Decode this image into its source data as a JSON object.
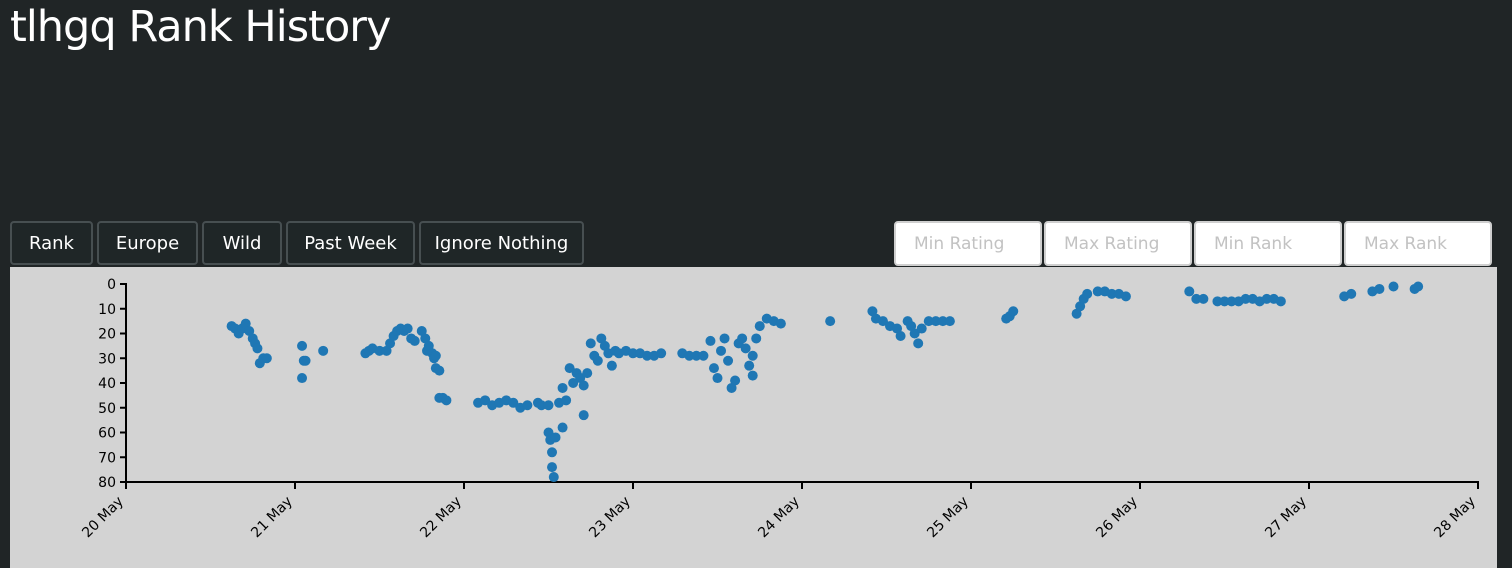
{
  "page": {
    "title": "tlhgq Rank History"
  },
  "buttons": {
    "rank": "Rank",
    "region": "Europe",
    "mode": "Wild",
    "period": "Past Week",
    "ignore": "Ignore Nothing"
  },
  "filters": {
    "min_rating_placeholder": "Min Rating",
    "max_rating_placeholder": "Max Rating",
    "min_rank_placeholder": "Min Rank",
    "max_rank_placeholder": "Max Rank"
  },
  "colors": {
    "point": "#1f77b4",
    "plot_bg": "#d3d3d3",
    "page_bg": "#202526"
  },
  "chart_data": {
    "type": "scatter",
    "title": "",
    "xlabel": "",
    "ylabel": "",
    "x_ticks": [
      "2024-05-20",
      "2024-05-21",
      "2024-05-22",
      "2024-05-23",
      "2024-05-24",
      "2024-05-25",
      "2024-05-26",
      "2024-05-27",
      "2024-05-28"
    ],
    "x_tick_labels": [
      "20 May",
      "21 May",
      "22 May",
      "23 May",
      "24 May",
      "25 May",
      "26 May",
      "27 May",
      "28 May"
    ],
    "y_ticks": [
      0,
      10,
      20,
      30,
      40,
      50,
      60,
      70,
      80
    ],
    "ylim": [
      80,
      0
    ],
    "y_reversed": true,
    "grid": false,
    "points": [
      {
        "t": "2024-05-20T15:00",
        "y": 17
      },
      {
        "t": "2024-05-20T15:30",
        "y": 18
      },
      {
        "t": "2024-05-20T16:00",
        "y": 20
      },
      {
        "t": "2024-05-20T16:30",
        "y": 18
      },
      {
        "t": "2024-05-20T17:00",
        "y": 16
      },
      {
        "t": "2024-05-20T17:30",
        "y": 19
      },
      {
        "t": "2024-05-20T18:00",
        "y": 22
      },
      {
        "t": "2024-05-20T18:20",
        "y": 24
      },
      {
        "t": "2024-05-20T18:40",
        "y": 26
      },
      {
        "t": "2024-05-20T19:00",
        "y": 32
      },
      {
        "t": "2024-05-20T19:30",
        "y": 30
      },
      {
        "t": "2024-05-20T20:00",
        "y": 30
      },
      {
        "t": "2024-05-21T01:00",
        "y": 25
      },
      {
        "t": "2024-05-21T01:00",
        "y": 38
      },
      {
        "t": "2024-05-21T01:15",
        "y": 31
      },
      {
        "t": "2024-05-21T01:30",
        "y": 31
      },
      {
        "t": "2024-05-21T04:00",
        "y": 27
      },
      {
        "t": "2024-05-21T10:00",
        "y": 28
      },
      {
        "t": "2024-05-21T10:30",
        "y": 27
      },
      {
        "t": "2024-05-21T11:00",
        "y": 26
      },
      {
        "t": "2024-05-21T12:00",
        "y": 27
      },
      {
        "t": "2024-05-21T13:00",
        "y": 27
      },
      {
        "t": "2024-05-21T13:30",
        "y": 24
      },
      {
        "t": "2024-05-21T14:00",
        "y": 21
      },
      {
        "t": "2024-05-21T14:30",
        "y": 19
      },
      {
        "t": "2024-05-21T15:00",
        "y": 18
      },
      {
        "t": "2024-05-21T15:30",
        "y": 19
      },
      {
        "t": "2024-05-21T16:00",
        "y": 18
      },
      {
        "t": "2024-05-21T16:30",
        "y": 22
      },
      {
        "t": "2024-05-21T17:00",
        "y": 23
      },
      {
        "t": "2024-05-21T18:00",
        "y": 19
      },
      {
        "t": "2024-05-21T18:30",
        "y": 22
      },
      {
        "t": "2024-05-21T18:45",
        "y": 27
      },
      {
        "t": "2024-05-21T19:00",
        "y": 25
      },
      {
        "t": "2024-05-21T19:30",
        "y": 28
      },
      {
        "t": "2024-05-21T19:45",
        "y": 30
      },
      {
        "t": "2024-05-21T20:00",
        "y": 29
      },
      {
        "t": "2024-05-21T20:00",
        "y": 34
      },
      {
        "t": "2024-05-21T20:30",
        "y": 35
      },
      {
        "t": "2024-05-21T20:30",
        "y": 46
      },
      {
        "t": "2024-05-21T21:00",
        "y": 46
      },
      {
        "t": "2024-05-21T21:30",
        "y": 47
      },
      {
        "t": "2024-05-22T02:00",
        "y": 48
      },
      {
        "t": "2024-05-22T03:00",
        "y": 47
      },
      {
        "t": "2024-05-22T04:00",
        "y": 49
      },
      {
        "t": "2024-05-22T05:00",
        "y": 48
      },
      {
        "t": "2024-05-22T06:00",
        "y": 47
      },
      {
        "t": "2024-05-22T07:00",
        "y": 48
      },
      {
        "t": "2024-05-22T08:00",
        "y": 50
      },
      {
        "t": "2024-05-22T09:00",
        "y": 49
      },
      {
        "t": "2024-05-22T10:30",
        "y": 48
      },
      {
        "t": "2024-05-22T11:00",
        "y": 49
      },
      {
        "t": "2024-05-22T12:00",
        "y": 49
      },
      {
        "t": "2024-05-22T12:00",
        "y": 60
      },
      {
        "t": "2024-05-22T12:15",
        "y": 63
      },
      {
        "t": "2024-05-22T12:30",
        "y": 68
      },
      {
        "t": "2024-05-22T12:30",
        "y": 74
      },
      {
        "t": "2024-05-22T12:45",
        "y": 78
      },
      {
        "t": "2024-05-22T13:00",
        "y": 62
      },
      {
        "t": "2024-05-22T13:30",
        "y": 48
      },
      {
        "t": "2024-05-22T14:00",
        "y": 42
      },
      {
        "t": "2024-05-22T14:00",
        "y": 58
      },
      {
        "t": "2024-05-22T14:30",
        "y": 47
      },
      {
        "t": "2024-05-22T15:00",
        "y": 34
      },
      {
        "t": "2024-05-22T15:30",
        "y": 40
      },
      {
        "t": "2024-05-22T16:00",
        "y": 36
      },
      {
        "t": "2024-05-22T16:30",
        "y": 38
      },
      {
        "t": "2024-05-22T17:00",
        "y": 41
      },
      {
        "t": "2024-05-22T17:00",
        "y": 53
      },
      {
        "t": "2024-05-22T17:30",
        "y": 36
      },
      {
        "t": "2024-05-22T18:00",
        "y": 24
      },
      {
        "t": "2024-05-22T18:30",
        "y": 29
      },
      {
        "t": "2024-05-22T19:00",
        "y": 31
      },
      {
        "t": "2024-05-22T19:30",
        "y": 22
      },
      {
        "t": "2024-05-22T20:00",
        "y": 25
      },
      {
        "t": "2024-05-22T20:30",
        "y": 28
      },
      {
        "t": "2024-05-22T21:00",
        "y": 33
      },
      {
        "t": "2024-05-22T21:30",
        "y": 27
      },
      {
        "t": "2024-05-22T22:00",
        "y": 28
      },
      {
        "t": "2024-05-22T23:00",
        "y": 27
      },
      {
        "t": "2024-05-23T00:00",
        "y": 28
      },
      {
        "t": "2024-05-23T01:00",
        "y": 28
      },
      {
        "t": "2024-05-23T02:00",
        "y": 29
      },
      {
        "t": "2024-05-23T03:00",
        "y": 29
      },
      {
        "t": "2024-05-23T04:00",
        "y": 28
      },
      {
        "t": "2024-05-23T07:00",
        "y": 28
      },
      {
        "t": "2024-05-23T08:00",
        "y": 29
      },
      {
        "t": "2024-05-23T09:00",
        "y": 29
      },
      {
        "t": "2024-05-23T10:00",
        "y": 29
      },
      {
        "t": "2024-05-23T11:00",
        "y": 23
      },
      {
        "t": "2024-05-23T11:30",
        "y": 34
      },
      {
        "t": "2024-05-23T12:00",
        "y": 38
      },
      {
        "t": "2024-05-23T12:30",
        "y": 27
      },
      {
        "t": "2024-05-23T13:00",
        "y": 22
      },
      {
        "t": "2024-05-23T13:30",
        "y": 31
      },
      {
        "t": "2024-05-23T14:00",
        "y": 42
      },
      {
        "t": "2024-05-23T14:30",
        "y": 39
      },
      {
        "t": "2024-05-23T15:00",
        "y": 24
      },
      {
        "t": "2024-05-23T15:30",
        "y": 22
      },
      {
        "t": "2024-05-23T16:00",
        "y": 26
      },
      {
        "t": "2024-05-23T16:30",
        "y": 33
      },
      {
        "t": "2024-05-23T17:00",
        "y": 37
      },
      {
        "t": "2024-05-23T17:00",
        "y": 29
      },
      {
        "t": "2024-05-23T17:30",
        "y": 22
      },
      {
        "t": "2024-05-23T18:00",
        "y": 17
      },
      {
        "t": "2024-05-23T19:00",
        "y": 14
      },
      {
        "t": "2024-05-23T20:00",
        "y": 15
      },
      {
        "t": "2024-05-23T21:00",
        "y": 16
      },
      {
        "t": "2024-05-24T04:00",
        "y": 15
      },
      {
        "t": "2024-05-24T10:00",
        "y": 11
      },
      {
        "t": "2024-05-24T10:30",
        "y": 14
      },
      {
        "t": "2024-05-24T11:30",
        "y": 15
      },
      {
        "t": "2024-05-24T12:30",
        "y": 17
      },
      {
        "t": "2024-05-24T13:30",
        "y": 18
      },
      {
        "t": "2024-05-24T14:00",
        "y": 21
      },
      {
        "t": "2024-05-24T15:00",
        "y": 15
      },
      {
        "t": "2024-05-24T15:30",
        "y": 17
      },
      {
        "t": "2024-05-24T16:00",
        "y": 20
      },
      {
        "t": "2024-05-24T16:30",
        "y": 24
      },
      {
        "t": "2024-05-24T17:00",
        "y": 18
      },
      {
        "t": "2024-05-24T18:00",
        "y": 15
      },
      {
        "t": "2024-05-24T19:00",
        "y": 15
      },
      {
        "t": "2024-05-24T20:00",
        "y": 15
      },
      {
        "t": "2024-05-24T21:00",
        "y": 15
      },
      {
        "t": "2024-05-25T05:00",
        "y": 14
      },
      {
        "t": "2024-05-25T05:30",
        "y": 13
      },
      {
        "t": "2024-05-25T06:00",
        "y": 11
      },
      {
        "t": "2024-05-25T15:00",
        "y": 12
      },
      {
        "t": "2024-05-25T15:30",
        "y": 9
      },
      {
        "t": "2024-05-25T16:00",
        "y": 6
      },
      {
        "t": "2024-05-25T16:30",
        "y": 4
      },
      {
        "t": "2024-05-25T18:00",
        "y": 3
      },
      {
        "t": "2024-05-25T19:00",
        "y": 3
      },
      {
        "t": "2024-05-25T20:00",
        "y": 4
      },
      {
        "t": "2024-05-25T21:00",
        "y": 4
      },
      {
        "t": "2024-05-25T22:00",
        "y": 5
      },
      {
        "t": "2024-05-26T07:00",
        "y": 3
      },
      {
        "t": "2024-05-26T08:00",
        "y": 6
      },
      {
        "t": "2024-05-26T09:00",
        "y": 6
      },
      {
        "t": "2024-05-26T11:00",
        "y": 7
      },
      {
        "t": "2024-05-26T12:00",
        "y": 7
      },
      {
        "t": "2024-05-26T13:00",
        "y": 7
      },
      {
        "t": "2024-05-26T14:00",
        "y": 7
      },
      {
        "t": "2024-05-26T15:00",
        "y": 6
      },
      {
        "t": "2024-05-26T16:00",
        "y": 6
      },
      {
        "t": "2024-05-26T17:00",
        "y": 7
      },
      {
        "t": "2024-05-26T18:00",
        "y": 6
      },
      {
        "t": "2024-05-26T19:00",
        "y": 6
      },
      {
        "t": "2024-05-26T20:00",
        "y": 7
      },
      {
        "t": "2024-05-27T05:00",
        "y": 5
      },
      {
        "t": "2024-05-27T06:00",
        "y": 4
      },
      {
        "t": "2024-05-27T09:00",
        "y": 3
      },
      {
        "t": "2024-05-27T10:00",
        "y": 2
      },
      {
        "t": "2024-05-27T12:00",
        "y": 1
      },
      {
        "t": "2024-05-27T15:00",
        "y": 2
      },
      {
        "t": "2024-05-27T15:30",
        "y": 1
      }
    ]
  }
}
